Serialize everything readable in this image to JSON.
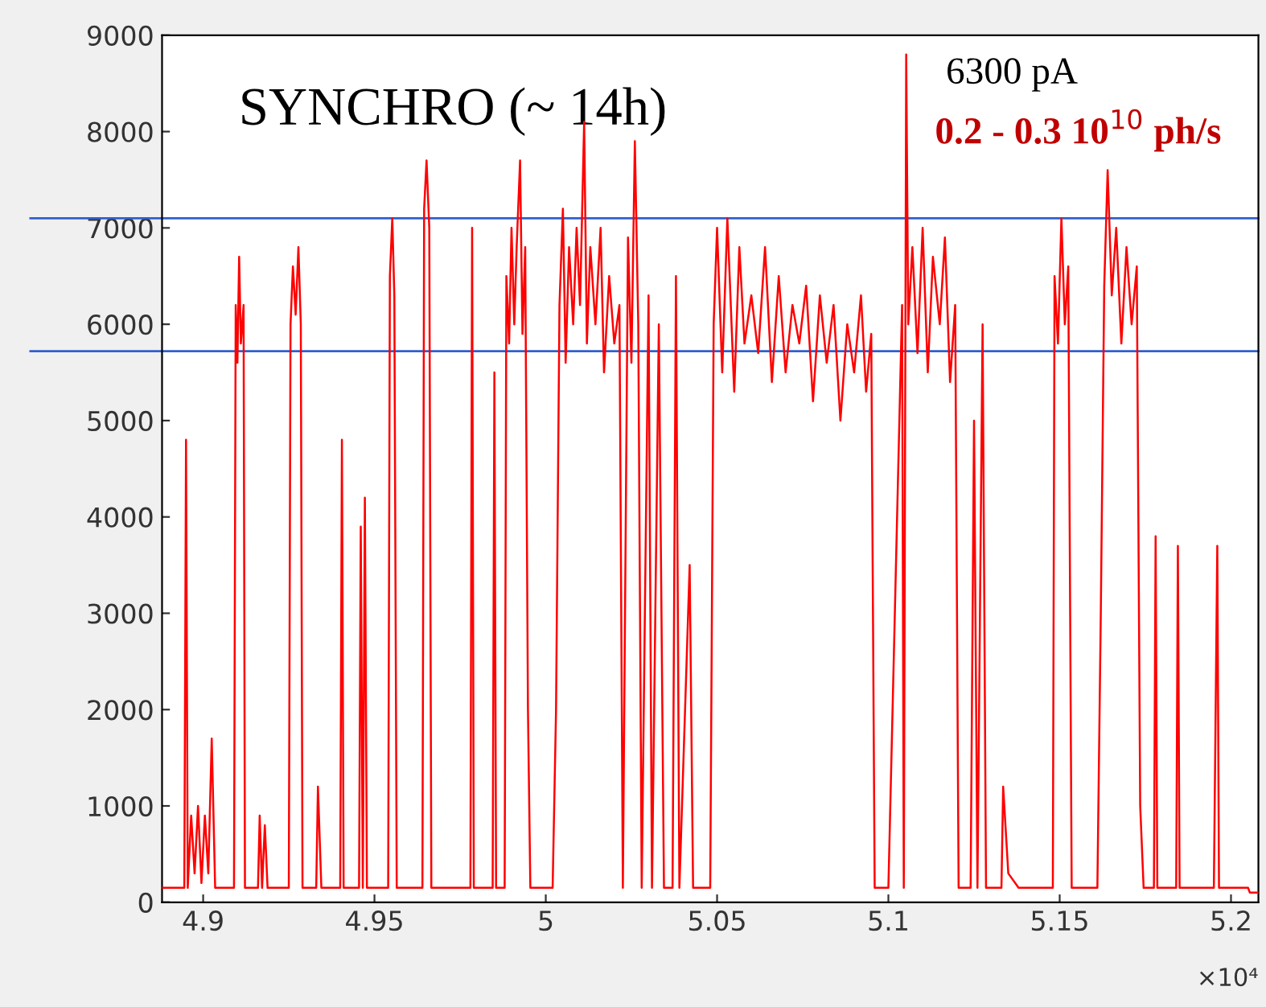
{
  "chart_data": {
    "type": "line",
    "title": "SYNCHRO (~ 14h)",
    "annotations": [
      "×10⁴",
      "6300 pA",
      "0.2 - 0.3 10$^{10}$ ph/s"
    ],
    "xlim": [
      4.888,
      5.208
    ],
    "ylim": [
      0,
      9000
    ],
    "xticks": [
      4.9,
      4.95,
      5,
      5.05,
      5.1,
      5.15,
      5.2
    ],
    "yticks": [
      0,
      1000,
      2000,
      3000,
      4000,
      5000,
      6000,
      7000,
      8000,
      9000
    ],
    "grid": false,
    "legend": false,
    "ref_lines": [
      {
        "axis": "y",
        "value": 7100,
        "label": null,
        "color": "#2f5fd0"
      },
      {
        "axis": "y",
        "value": 5720,
        "label": null,
        "color": "#2f5fd0"
      }
    ],
    "series": [
      {
        "color": "#ff0000",
        "x": [
          4.888,
          4.8945,
          4.895,
          4.8955,
          4.8965,
          4.8975,
          4.8985,
          4.8995,
          4.9005,
          4.9015,
          4.9025,
          4.9035,
          4.909,
          4.9095,
          4.91,
          4.9105,
          4.911,
          4.9118,
          4.9122,
          4.916,
          4.9165,
          4.9172,
          4.918,
          4.9188,
          4.925,
          4.9255,
          4.9262,
          4.927,
          4.9278,
          4.9285,
          4.929,
          4.933,
          4.9335,
          4.9345,
          4.94,
          4.9405,
          4.941,
          4.9455,
          4.946,
          4.9466,
          4.9472,
          4.9478,
          4.954,
          4.9545,
          4.9552,
          4.9558,
          4.9565,
          4.964,
          4.9645,
          4.9652,
          4.966,
          4.9666,
          4.978,
          4.9785,
          4.979,
          4.9845,
          4.985,
          4.9855,
          4.988,
          4.9885,
          4.9893,
          4.99,
          4.9908,
          4.9915,
          4.9925,
          4.9932,
          4.994,
          4.9948,
          4.9955,
          5.002,
          5.003,
          5.004,
          5.005,
          5.0058,
          5.0068,
          5.008,
          5.009,
          5.01,
          5.0112,
          5.012,
          5.013,
          5.0145,
          5.016,
          5.017,
          5.0185,
          5.02,
          5.0215,
          5.0225,
          5.024,
          5.025,
          5.026,
          5.027,
          5.028,
          5.03,
          5.031,
          5.033,
          5.0345,
          5.037,
          5.038,
          5.039,
          5.042,
          5.043,
          5.048,
          5.049,
          5.05,
          5.0515,
          5.053,
          5.055,
          5.0565,
          5.058,
          5.06,
          5.062,
          5.064,
          5.066,
          5.068,
          5.07,
          5.072,
          5.074,
          5.076,
          5.078,
          5.08,
          5.082,
          5.084,
          5.086,
          5.088,
          5.09,
          5.092,
          5.0935,
          5.095,
          5.096,
          5.1,
          5.104,
          5.1045,
          5.1052,
          5.1058,
          5.107,
          5.1085,
          5.11,
          5.1115,
          5.113,
          5.115,
          5.1165,
          5.118,
          5.1195,
          5.1205,
          5.124,
          5.125,
          5.126,
          5.1275,
          5.1285,
          5.133,
          5.1335,
          5.135,
          5.138,
          5.148,
          5.1485,
          5.1495,
          5.1505,
          5.1515,
          5.1525,
          5.1535,
          5.161,
          5.162,
          5.163,
          5.164,
          5.1652,
          5.1665,
          5.168,
          5.1695,
          5.171,
          5.1725,
          5.1735,
          5.1745,
          5.1775,
          5.178,
          5.1785,
          5.184,
          5.1845,
          5.185,
          5.195,
          5.196,
          5.1965,
          5.2,
          5.205,
          5.2055,
          5.208
        ],
        "values": [
          150,
          150,
          4800,
          150,
          900,
          300,
          1000,
          200,
          900,
          300,
          1700,
          150,
          150,
          6200,
          5600,
          6700,
          5800,
          6200,
          150,
          150,
          900,
          150,
          800,
          150,
          150,
          6000,
          6600,
          6100,
          6800,
          6000,
          150,
          150,
          1200,
          150,
          150,
          4800,
          150,
          150,
          3900,
          150,
          4200,
          150,
          150,
          6500,
          7100,
          6300,
          150,
          150,
          7200,
          7700,
          7000,
          150,
          150,
          7000,
          150,
          150,
          5500,
          150,
          150,
          6500,
          5800,
          7000,
          6000,
          6800,
          7700,
          5900,
          6800,
          2000,
          150,
          150,
          2000,
          6200,
          7200,
          5600,
          6800,
          6000,
          7000,
          6200,
          8100,
          5800,
          6800,
          6000,
          7000,
          5500,
          6500,
          5800,
          6200,
          150,
          6900,
          5600,
          7900,
          6000,
          150,
          6300,
          150,
          6000,
          150,
          150,
          6500,
          150,
          3500,
          150,
          150,
          6000,
          7000,
          5500,
          7100,
          5300,
          6800,
          5800,
          6300,
          5700,
          6800,
          5400,
          6500,
          5500,
          6200,
          5800,
          6400,
          5200,
          6300,
          5600,
          6200,
          5000,
          6000,
          5500,
          6300,
          5300,
          5900,
          150,
          150,
          6200,
          150,
          8800,
          6000,
          6800,
          5700,
          7000,
          5500,
          6700,
          6000,
          6900,
          5400,
          6200,
          150,
          150,
          5000,
          150,
          6000,
          150,
          150,
          1200,
          300,
          150,
          150,
          6500,
          5800,
          7100,
          6000,
          6600,
          150,
          150,
          3000,
          6400,
          7600,
          6300,
          7000,
          5800,
          6800,
          6000,
          6600,
          1000,
          150,
          150,
          3800,
          150,
          150,
          3700,
          150,
          150,
          3700,
          150,
          150,
          150,
          100,
          100
        ]
      }
    ]
  }
}
